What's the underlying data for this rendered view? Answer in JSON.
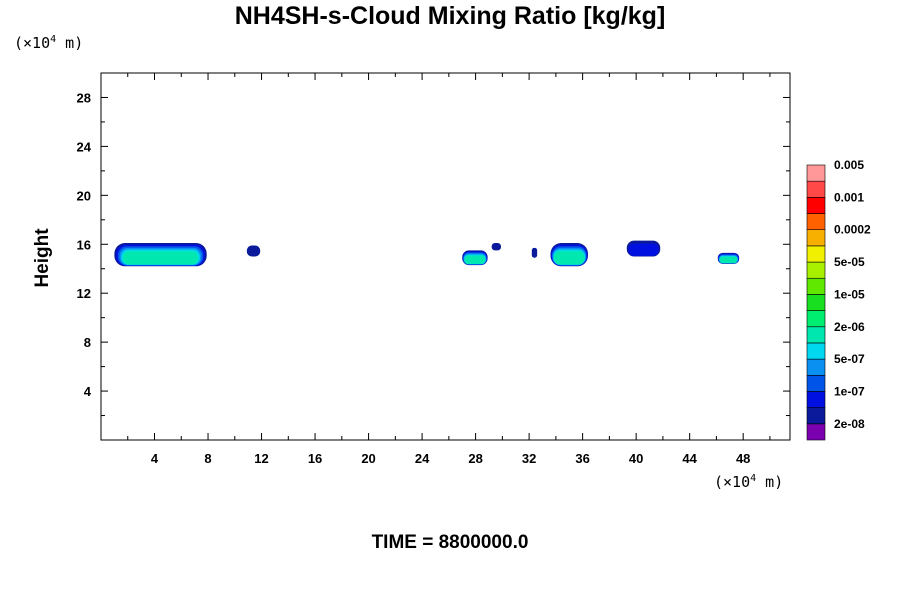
{
  "chart_data": {
    "type": "heatmap",
    "title": "NH4SH-s-Cloud Mixing Ratio [kg/kg]",
    "ylabel": "Height",
    "xlabel": "",
    "x_unit": "(×10⁴ m)",
    "y_unit": "(×10⁴ m)",
    "footer": "TIME = 8800000.0",
    "xlim": [
      0,
      51.5
    ],
    "ylim": [
      0,
      30
    ],
    "xticks": [
      4,
      8,
      12,
      16,
      20,
      24,
      28,
      32,
      36,
      40,
      44,
      48
    ],
    "yticks": [
      4,
      8,
      12,
      16,
      20,
      24,
      28
    ],
    "colorbar": {
      "colors": [
        "#7a00b0",
        "#0a1a9a",
        "#0010e0",
        "#0055e8",
        "#0a90f0",
        "#00d8f0",
        "#00e8b0",
        "#00ee70",
        "#18e020",
        "#60e800",
        "#a8f000",
        "#f0f000",
        "#f8b000",
        "#ff6000",
        "#ff0000",
        "#ff4848",
        "#ff9898"
      ],
      "labels": [
        "2e-08",
        "1e-07",
        "5e-07",
        "2e-06",
        "1e-05",
        "5e-05",
        "0.0002",
        "0.001",
        "0.005"
      ]
    },
    "cloud_regions": [
      {
        "x": [
          1.0,
          7.9
        ],
        "y": [
          14.2,
          16.1
        ],
        "peak": "2e-06"
      },
      {
        "x": [
          10.9,
          11.9
        ],
        "y": [
          15.0,
          15.9
        ],
        "peak": "2e-08"
      },
      {
        "x": [
          27.0,
          28.9
        ],
        "y": [
          14.3,
          15.5
        ],
        "peak": "2e-06"
      },
      {
        "x": [
          29.2,
          29.9
        ],
        "y": [
          15.5,
          16.1
        ],
        "peak": "2e-08"
      },
      {
        "x": [
          32.2,
          32.6
        ],
        "y": [
          14.9,
          15.7
        ],
        "peak": "2e-08"
      },
      {
        "x": [
          33.6,
          36.4
        ],
        "y": [
          14.2,
          16.1
        ],
        "peak": "2e-06"
      },
      {
        "x": [
          39.3,
          41.8
        ],
        "y": [
          15.0,
          16.3
        ],
        "peak": "1e-07"
      },
      {
        "x": [
          46.1,
          47.7
        ],
        "y": [
          14.4,
          15.3
        ],
        "peak": "2e-06"
      }
    ]
  }
}
